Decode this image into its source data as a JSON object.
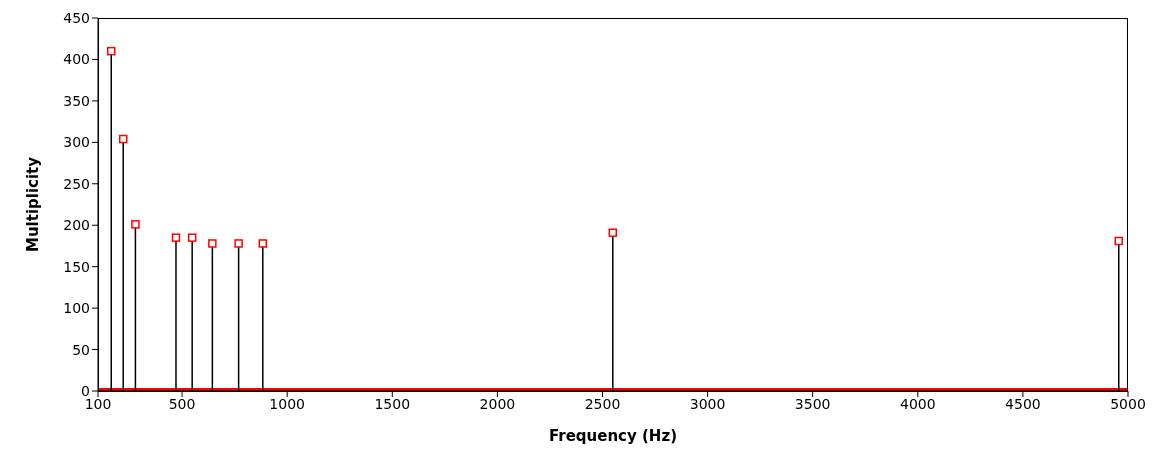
{
  "chart_data": {
    "type": "lollipop",
    "xlabel": "Frequency (Hz)",
    "ylabel": "Multiplicity",
    "xlim": [
      100,
      5000
    ],
    "xticks": [
      100,
      500,
      1000,
      1500,
      2000,
      2500,
      3000,
      3500,
      4000,
      4500,
      5000
    ],
    "ylim": [
      0,
      450
    ],
    "yticks": [
      0,
      50,
      100,
      150,
      200,
      250,
      300,
      350,
      400,
      450
    ],
    "series": [
      {
        "color": "#ff0000",
        "marker": "square",
        "x": [
          163,
          220,
          278,
          471,
          548,
          644,
          769,
          884,
          2549,
          4956
        ],
        "values": [
          410,
          304,
          201,
          185,
          185,
          178,
          178,
          178,
          191,
          181
        ]
      },
      {
        "type": "line",
        "color": "#ff0000",
        "marker": "none",
        "x": [
          100,
          5000
        ],
        "values": [
          0,
          0
        ]
      }
    ]
  }
}
